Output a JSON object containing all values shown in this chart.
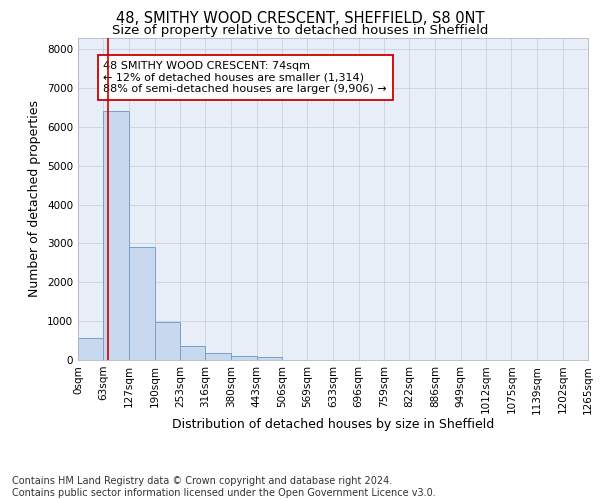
{
  "title1": "48, SMITHY WOOD CRESCENT, SHEFFIELD, S8 0NT",
  "title2": "Size of property relative to detached houses in Sheffield",
  "xlabel": "Distribution of detached houses by size in Sheffield",
  "ylabel": "Number of detached properties",
  "bin_edges": [
    0,
    63,
    127,
    190,
    253,
    316,
    380,
    443,
    506,
    569,
    633,
    696,
    759,
    822,
    886,
    949,
    1012,
    1075,
    1139,
    1202,
    1265
  ],
  "bar_heights": [
    570,
    6400,
    2900,
    980,
    370,
    180,
    100,
    80,
    0,
    0,
    0,
    0,
    0,
    0,
    0,
    0,
    0,
    0,
    0,
    0
  ],
  "bar_color": "#c8d8ee",
  "bar_edge_color": "#7aa0c8",
  "bar_edge_width": 0.7,
  "property_size": 74,
  "red_line_color": "#cc0000",
  "annotation_text": "48 SMITHY WOOD CRESCENT: 74sqm\n← 12% of detached houses are smaller (1,314)\n88% of semi-detached houses are larger (9,906) →",
  "annotation_box_color": "#ffffff",
  "annotation_box_edge_color": "#cc0000",
  "ylim": [
    0,
    8300
  ],
  "yticks": [
    0,
    1000,
    2000,
    3000,
    4000,
    5000,
    6000,
    7000,
    8000
  ],
  "tick_labels": [
    "0sqm",
    "63sqm",
    "127sqm",
    "190sqm",
    "253sqm",
    "316sqm",
    "380sqm",
    "443sqm",
    "506sqm",
    "569sqm",
    "633sqm",
    "696sqm",
    "759sqm",
    "822sqm",
    "886sqm",
    "949sqm",
    "1012sqm",
    "1075sqm",
    "1139sqm",
    "1202sqm",
    "1265sqm"
  ],
  "footer_text": "Contains HM Land Registry data © Crown copyright and database right 2024.\nContains public sector information licensed under the Open Government Licence v3.0.",
  "background_color": "#ffffff",
  "plot_bg_color": "#e8eef8",
  "grid_color": "#c8d0e0",
  "title1_fontsize": 10.5,
  "title2_fontsize": 9.5,
  "axis_label_fontsize": 9,
  "tick_fontsize": 7.5,
  "annotation_fontsize": 8,
  "footer_fontsize": 7
}
